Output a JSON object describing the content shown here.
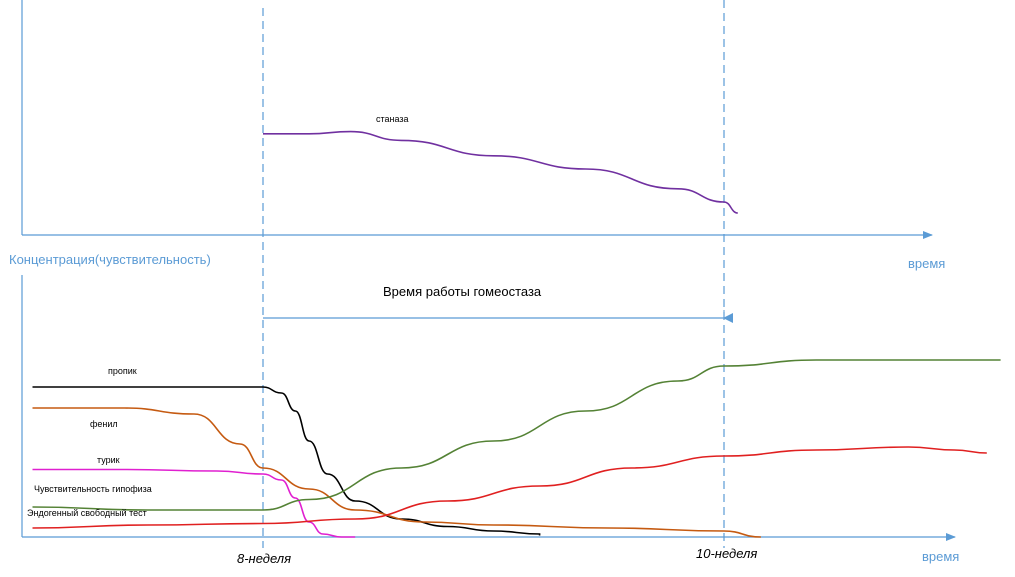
{
  "labels": {
    "ylabel": "Концентрация(чувствительность)",
    "xlabel_top": "время",
    "xlabel_bottom": "время",
    "homeostasis": "Время работы гомеостаза",
    "week8": "8-неделя",
    "week10": "10-неделя"
  },
  "colors": {
    "axis": "#5b9bd5",
    "stanaza": "#7030a0",
    "propik": "#000000",
    "fenil": "#c55a11",
    "turik": "#e020d0",
    "pituitary": "#548235",
    "testosterone": "#e02020"
  },
  "chart_data": [
    {
      "type": "line",
      "title": "",
      "xlabel": "время",
      "ylabel": "",
      "series": [
        {
          "name": "станаза",
          "color": "#7030a0",
          "x": [
            8.0,
            8.2,
            8.38,
            8.6,
            9.0,
            9.4,
            9.8,
            10.0,
            10.06
          ],
          "y": [
            0.92,
            0.92,
            0.94,
            0.86,
            0.72,
            0.6,
            0.42,
            0.3,
            0.2
          ]
        }
      ]
    },
    {
      "type": "line",
      "title": "",
      "xlabel": "время",
      "ylabel": "Концентрация(чувствительность)",
      "series": [
        {
          "name": "пропик",
          "color": "#000000",
          "x": [
            7.0,
            7.5,
            8.0,
            8.08,
            8.14,
            8.2,
            8.28,
            8.4,
            8.6,
            8.8,
            9.0,
            9.2,
            9.2
          ],
          "y": [
            1.0,
            1.0,
            1.0,
            0.96,
            0.84,
            0.64,
            0.42,
            0.24,
            0.12,
            0.07,
            0.04,
            0.02,
            0.01
          ]
        },
        {
          "name": "фенил",
          "color": "#c55a11",
          "x": [
            7.0,
            7.4,
            7.7,
            7.9,
            8.0,
            8.2,
            8.4,
            8.7,
            9.0,
            9.5,
            10.0,
            10.16
          ],
          "y": [
            0.86,
            0.86,
            0.82,
            0.62,
            0.46,
            0.32,
            0.18,
            0.1,
            0.08,
            0.06,
            0.04,
            0.0
          ]
        },
        {
          "name": "турик",
          "color": "#e020d0",
          "x": [
            7.0,
            7.4,
            7.8,
            8.0,
            8.08,
            8.14,
            8.2,
            8.26,
            8.34,
            8.4
          ],
          "y": [
            0.45,
            0.45,
            0.44,
            0.42,
            0.38,
            0.26,
            0.1,
            0.02,
            0.0,
            0.0
          ]
        },
        {
          "name": "Чувствительность гипофиза",
          "color": "#548235",
          "x": [
            7.0,
            7.5,
            8.0,
            8.2,
            8.6,
            9.0,
            9.4,
            9.8,
            10.0,
            10.4,
            10.8,
            11.2
          ],
          "y": [
            0.2,
            0.18,
            0.18,
            0.25,
            0.46,
            0.64,
            0.84,
            1.04,
            1.14,
            1.18,
            1.18,
            1.18
          ]
        },
        {
          "name": "Эндогенный свободный тест",
          "color": "#e02020",
          "x": [
            7.0,
            7.5,
            8.0,
            8.4,
            8.8,
            9.2,
            9.6,
            10.0,
            10.4,
            10.8,
            11.0,
            11.14
          ],
          "y": [
            0.06,
            0.08,
            0.09,
            0.12,
            0.24,
            0.34,
            0.46,
            0.54,
            0.58,
            0.6,
            0.58,
            0.56
          ]
        }
      ]
    }
  ]
}
